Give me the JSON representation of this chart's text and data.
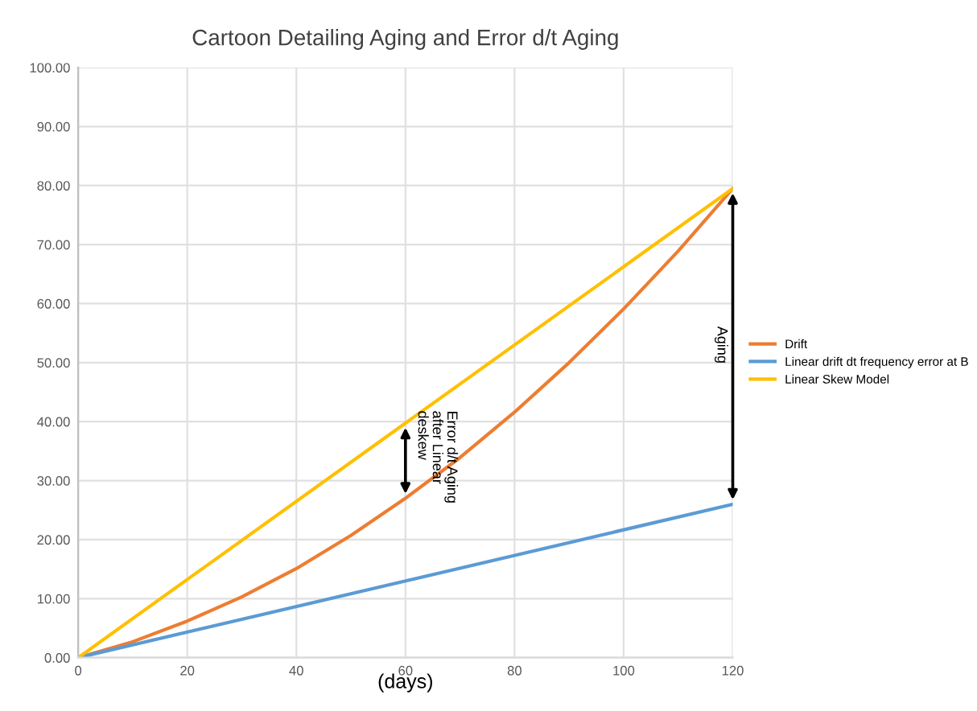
{
  "chart_data": {
    "type": "line",
    "title": "Cartoon Detailing Aging and Error d/t Aging",
    "xlabel": "(days)",
    "series": [
      {
        "name": "Drift",
        "color": "#ed7d31",
        "x": [
          0,
          10,
          20,
          30,
          40,
          50,
          60,
          70,
          80,
          90,
          100,
          110,
          120
        ],
        "values": [
          0,
          2.7,
          6.2,
          10.3,
          15.1,
          20.7,
          27,
          33.9,
          41.6,
          50,
          59.1,
          68.9,
          79.5
        ]
      },
      {
        "name": "Linear drift dt frequency error at B",
        "color": "#5b9bd5",
        "x": [
          0,
          120
        ],
        "values": [
          0,
          26
        ]
      },
      {
        "name": "Linear Skew Model",
        "color": "#ffc000",
        "x": [
          0,
          120
        ],
        "values": [
          0,
          79.5
        ]
      }
    ],
    "annotations": [
      "Error d/t Aging\nafter Linear\ndeskew",
      "Aging"
    ],
    "xlim": [
      0,
      120
    ],
    "xticks": [
      0,
      20,
      40,
      60,
      80,
      100,
      120
    ],
    "ylim": [
      0,
      100
    ],
    "yticks": [
      {
        "value": 0,
        "label": "0.00"
      },
      {
        "value": 10,
        "label": "10.00"
      },
      {
        "value": 20,
        "label": "20.00"
      },
      {
        "value": 30,
        "label": "30.00"
      },
      {
        "value": 40,
        "label": "40.00"
      },
      {
        "value": 50,
        "label": "50.00"
      },
      {
        "value": 60,
        "label": "60.00"
      },
      {
        "value": 70,
        "label": "70.00"
      },
      {
        "value": 80,
        "label": "80.00"
      },
      {
        "value": 90,
        "label": "90.00"
      },
      {
        "value": 100,
        "label": "100.00"
      }
    ],
    "grid": true,
    "legend": "right",
    "marker": "none",
    "line_style": "solid"
  }
}
